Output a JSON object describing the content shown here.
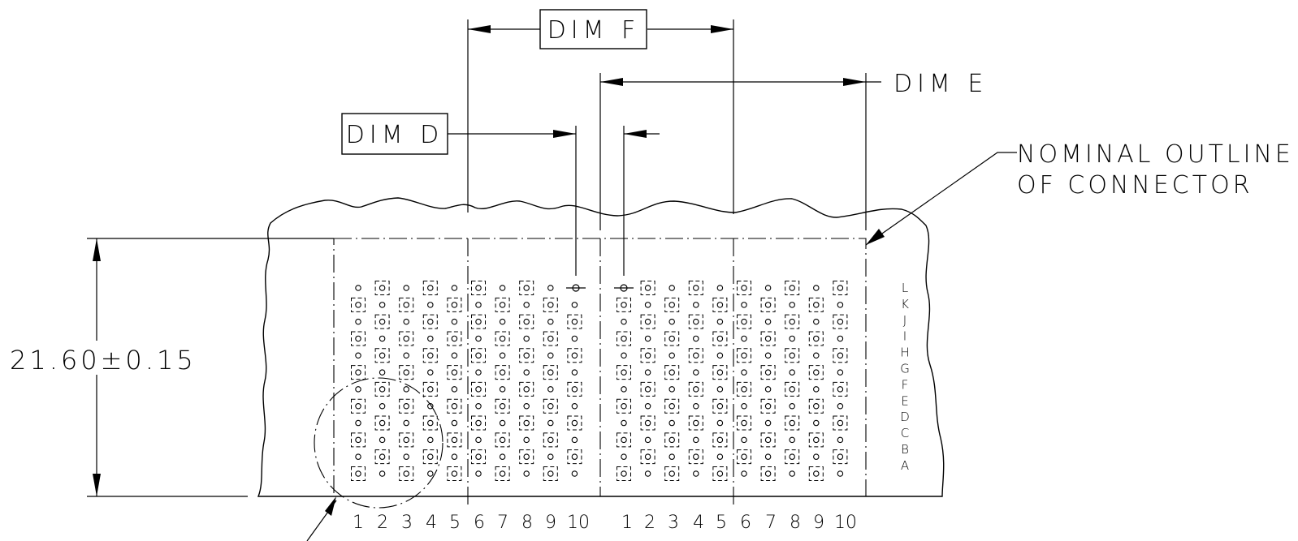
{
  "labels": {
    "dim_f": "DIM F",
    "dim_e": "DIM E",
    "dim_d": "DIM D",
    "outline_line1": "NOMINAL OUTLINE",
    "outline_line2": "OF CONNECTOR",
    "height_dim": "21.60±0.15"
  },
  "rows": [
    "L",
    "K",
    "J",
    "I",
    "H",
    "G",
    "F",
    "E",
    "D",
    "C",
    "B",
    "A"
  ],
  "columns_group1": [
    "1",
    "2",
    "3",
    "4",
    "5",
    "6",
    "7",
    "8",
    "9",
    "10"
  ],
  "columns_group2": [
    "1",
    "2",
    "3",
    "4",
    "5",
    "6",
    "7",
    "8",
    "9",
    "10"
  ]
}
